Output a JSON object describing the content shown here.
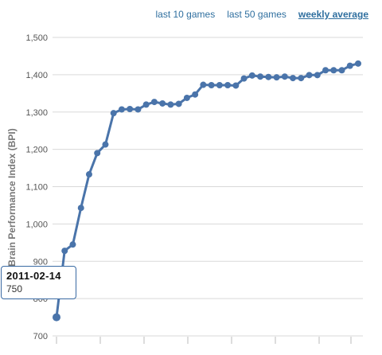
{
  "tabs": [
    {
      "label": "last 10 games",
      "active": false
    },
    {
      "label": "last 50 games",
      "active": false
    },
    {
      "label": "weekly average",
      "active": true
    }
  ],
  "tooltip": {
    "date": "2011-02-14",
    "value": "750"
  },
  "colors": {
    "line": "#4a74aa",
    "grid": "#d9d9d9",
    "link": "#2f6f9f",
    "tooltip_border": "#3a6aa3"
  },
  "chart_data": {
    "type": "line",
    "title": "",
    "xlabel": "",
    "ylabel": "Brain Performance Index (BPI)",
    "ylim": [
      700,
      1500
    ],
    "yticks": [
      "700",
      "800",
      "900",
      "1,000",
      "1,100",
      "1,200",
      "1,300",
      "1,400",
      "1,500"
    ],
    "grid": true,
    "series": [
      {
        "values": [
          750,
          928,
          945,
          1043,
          1133,
          1190,
          1213,
          1297,
          1307,
          1308,
          1307,
          1320,
          1327,
          1323,
          1320,
          1322,
          1338,
          1347,
          1373,
          1372,
          1372,
          1372,
          1371,
          1390,
          1398,
          1395,
          1394,
          1393,
          1395,
          1391,
          1391,
          1399,
          1399,
          1412,
          1412,
          1412,
          1424,
          1430
        ]
      }
    ]
  }
}
